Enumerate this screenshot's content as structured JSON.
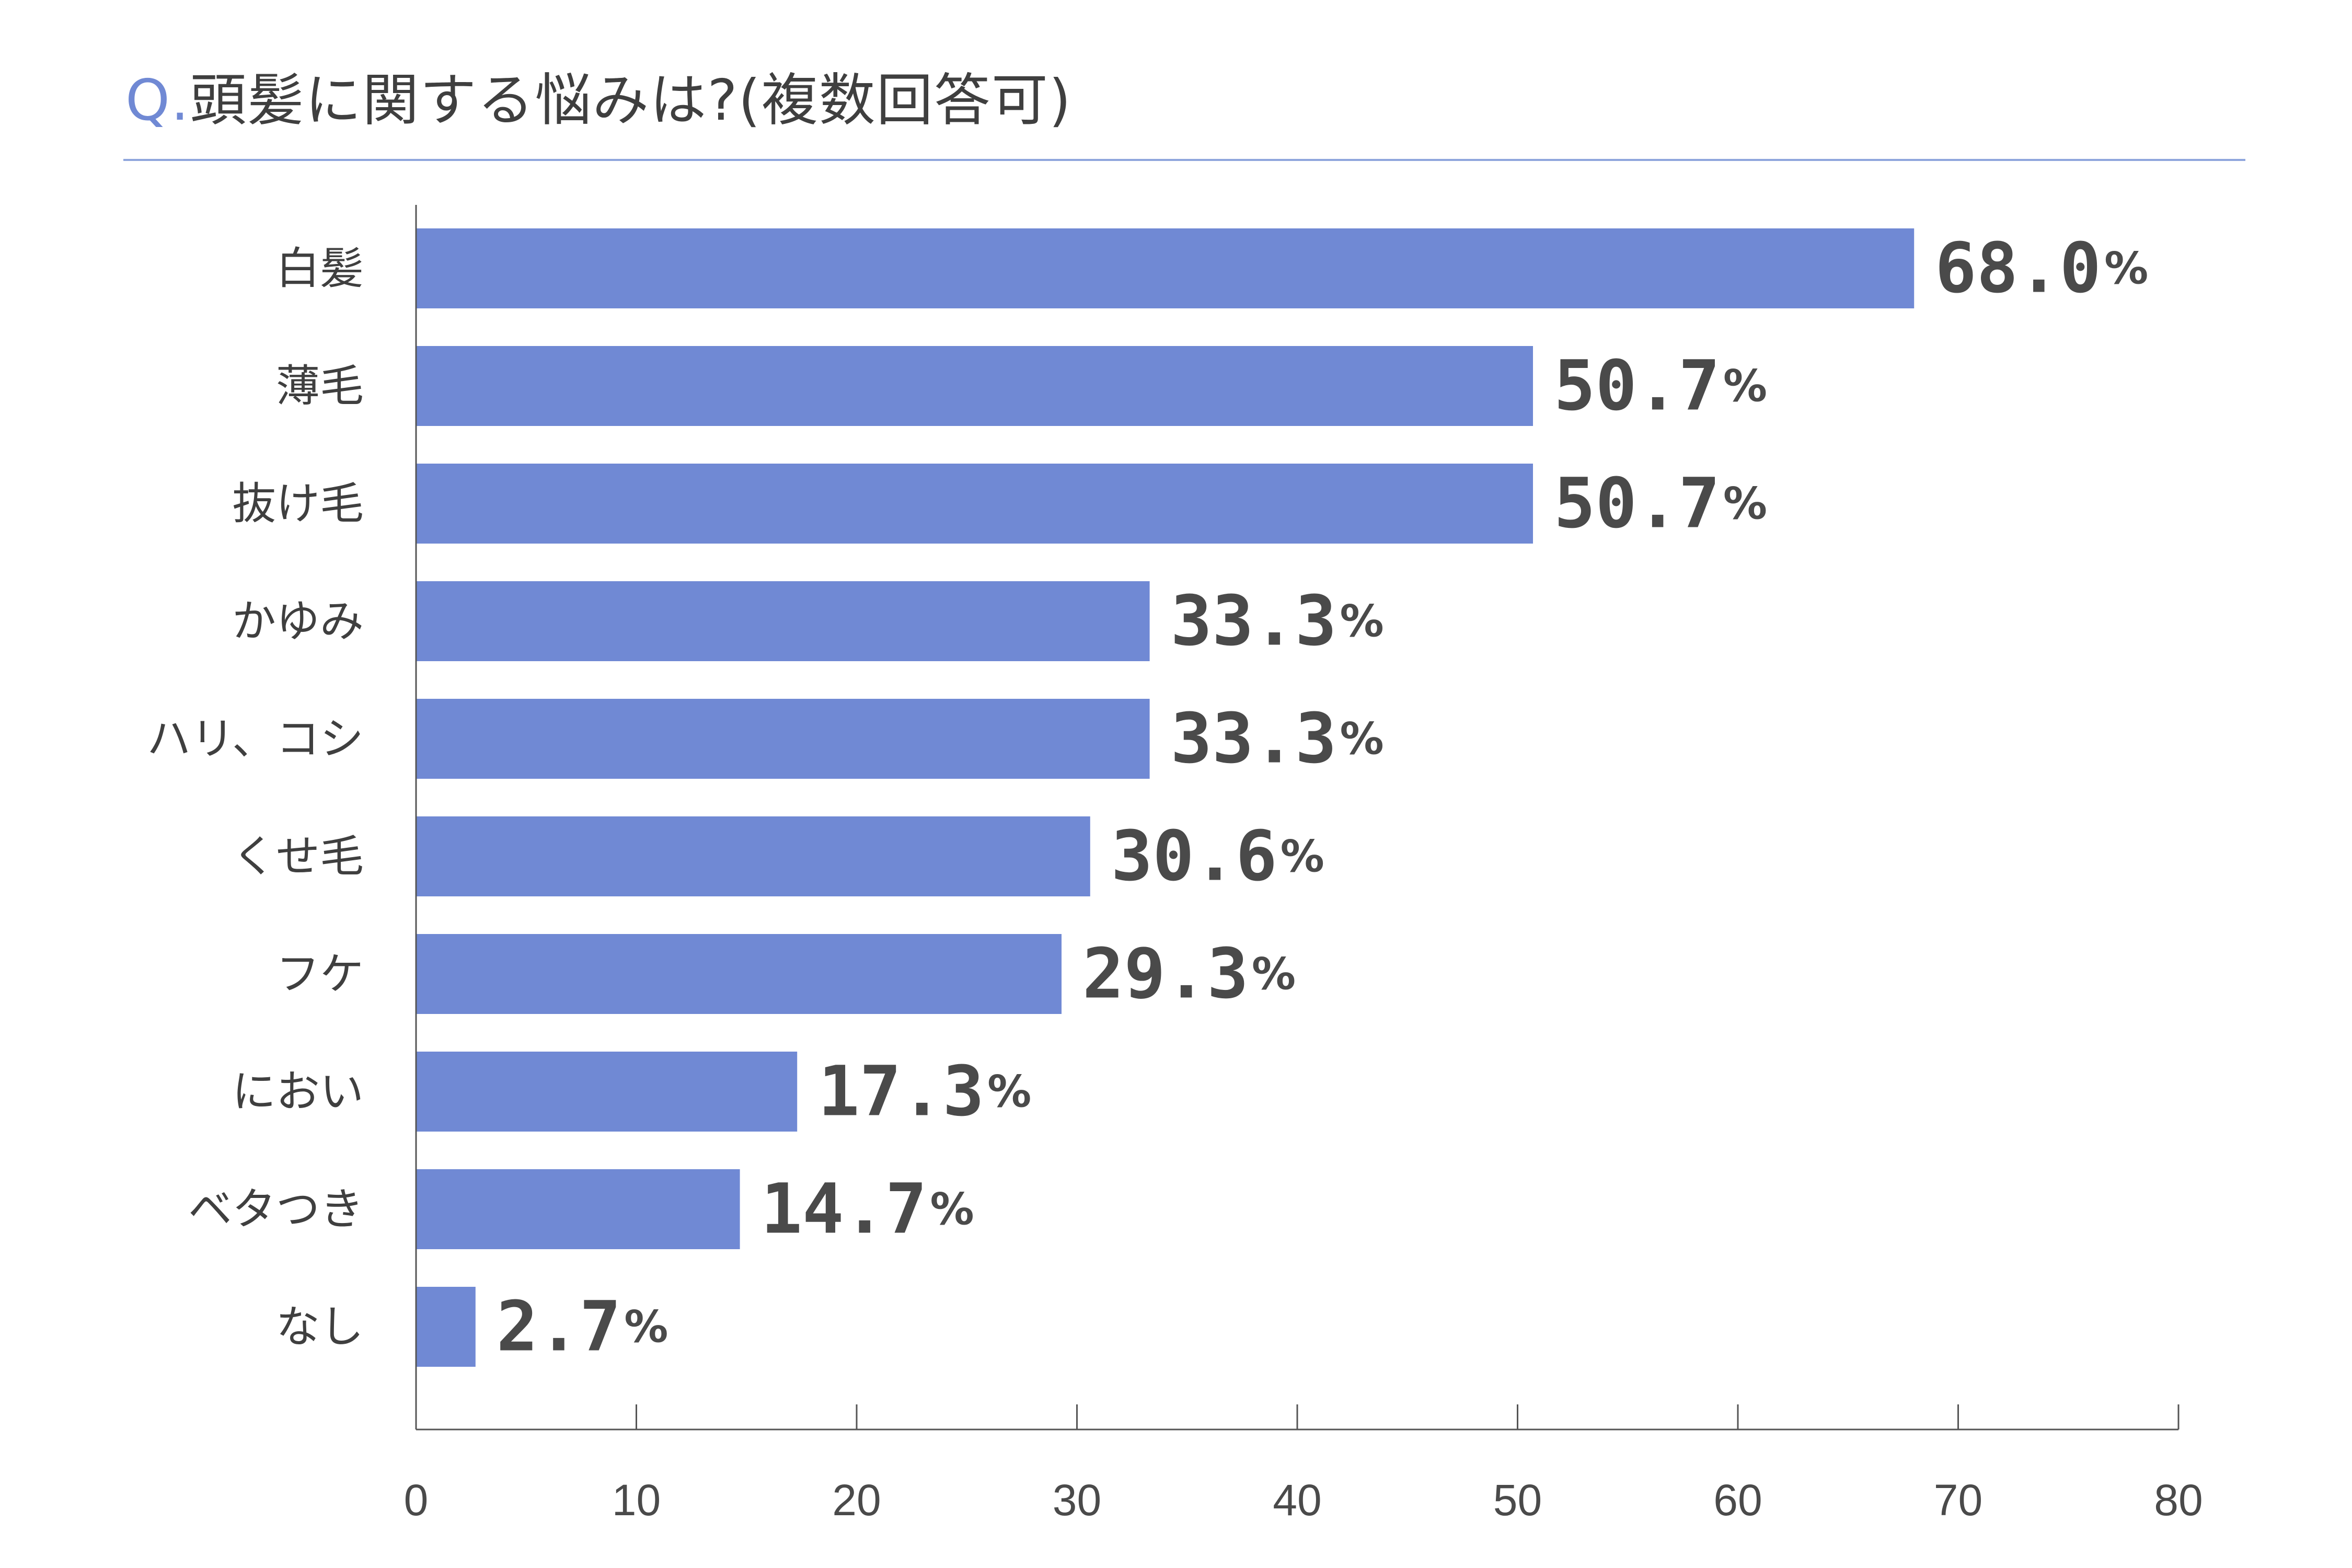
{
  "title": {
    "prefix": "Q.",
    "text": "頭髪に関する悩みは?(複数回答可)"
  },
  "colors": {
    "bar": "#7089d4",
    "title_prefix": "#7089d4",
    "rule": "#8fa6dd",
    "axis": "#555555",
    "text": "#4a4a4a"
  },
  "chart_data": {
    "type": "bar",
    "orientation": "horizontal",
    "categories": [
      "白髪",
      "薄毛",
      "抜け毛",
      "かゆみ",
      "ハリ、コシ",
      "くせ毛",
      "フケ",
      "におい",
      "ベタつき",
      "なし"
    ],
    "values": [
      68.0,
      50.7,
      50.7,
      33.3,
      33.3,
      30.6,
      29.3,
      17.3,
      14.7,
      2.7
    ],
    "value_labels": [
      "68.0",
      "50.7",
      "50.7",
      "33.3",
      "33.3",
      "30.6",
      "29.3",
      "17.3",
      "14.7",
      "2.7"
    ],
    "value_suffix": "%",
    "xlim": [
      0,
      80
    ],
    "xticks": [
      "0",
      "10",
      "20",
      "30",
      "40",
      "50",
      "60",
      "70",
      "80"
    ],
    "grid": false,
    "legend": "none"
  }
}
